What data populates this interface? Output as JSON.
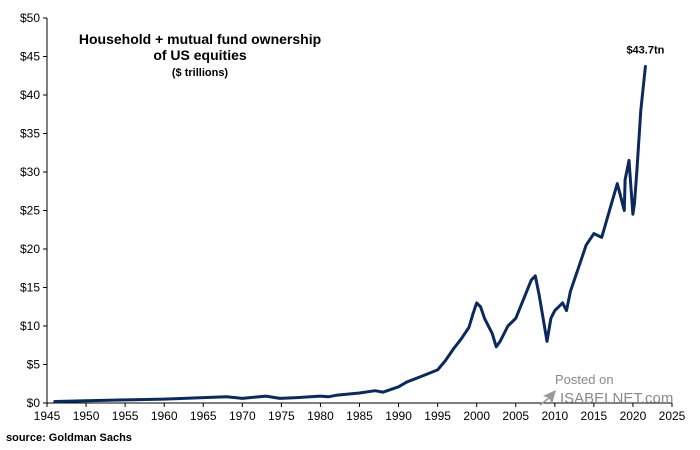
{
  "chart_data": {
    "type": "line",
    "title": "Household + mutual fund ownership",
    "title_line2": "of US equities",
    "subtitle": "($ trillions)",
    "xlabel": "",
    "ylabel": "",
    "xlim": [
      1945,
      2025
    ],
    "ylim": [
      0,
      50
    ],
    "x_ticks": [
      1945,
      1950,
      1955,
      1960,
      1965,
      1970,
      1975,
      1980,
      1985,
      1990,
      1995,
      2000,
      2005,
      2010,
      2015,
      2020,
      2025
    ],
    "y_ticks": [
      0,
      5,
      10,
      15,
      20,
      25,
      30,
      35,
      40,
      45,
      50
    ],
    "y_tick_labels": [
      "$0",
      "$5",
      "$10",
      "$15",
      "$20",
      "$25",
      "$30",
      "$35",
      "$40",
      "$45",
      "$50"
    ],
    "end_label": "$43.7tn",
    "line_color": "#0b2a5b",
    "series": [
      {
        "name": "Household + mutual fund ownership of US equities",
        "x": [
          1946,
          1950,
          1955,
          1960,
          1965,
          1968,
          1970,
          1973,
          1974.8,
          1977,
          1980,
          1981,
          1982,
          1985,
          1987,
          1988,
          1990,
          1991,
          1993,
          1995,
          1996,
          1997,
          1998,
          1999,
          1999.5,
          2000,
          2000.5,
          2001,
          2002,
          2002.5,
          2003,
          2004,
          2005,
          2006,
          2007,
          2007.5,
          2008,
          2008.5,
          2009,
          2009.5,
          2010,
          2011,
          2011.5,
          2012,
          2013,
          2014,
          2015,
          2016,
          2017,
          2018,
          2018.9,
          2019,
          2019.5,
          2020,
          2020.2,
          2020.5,
          2021,
          2021.6
        ],
        "y": [
          0.2,
          0.3,
          0.4,
          0.5,
          0.7,
          0.8,
          0.6,
          0.9,
          0.6,
          0.7,
          0.9,
          0.8,
          1.0,
          1.3,
          1.6,
          1.4,
          2.1,
          2.7,
          3.5,
          4.3,
          5.5,
          7.0,
          8.3,
          9.8,
          11.5,
          13.0,
          12.5,
          11.0,
          9.0,
          7.3,
          8.0,
          10.0,
          11.0,
          13.5,
          16.0,
          16.5,
          14.0,
          11.0,
          8.0,
          11.0,
          12.0,
          13.0,
          12.0,
          14.5,
          17.5,
          20.5,
          22.0,
          21.5,
          25.0,
          28.5,
          25.0,
          29.0,
          31.5,
          24.5,
          26.0,
          30.0,
          38.0,
          43.7
        ]
      }
    ]
  },
  "watermark": {
    "posted_on": "Posted on",
    "brand": "ISABELNET.com"
  },
  "source": "source: Goldman Sachs"
}
